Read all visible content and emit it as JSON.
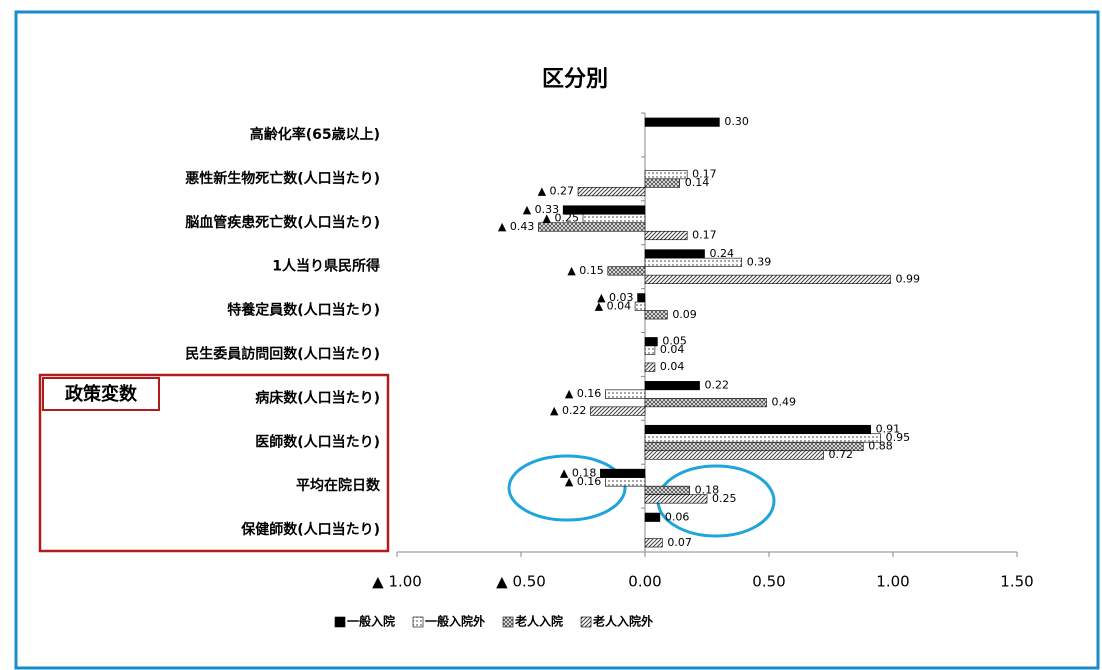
{
  "chart_data": {
    "type": "bar",
    "orientation": "horizontal",
    "title": "区分別",
    "categories": [
      "高齢化率(65歳以上)",
      "悪性新生物死亡数(人口当たり)",
      "脳血管疾患死亡数(人口当たり)",
      "1人当り県民所得",
      "特養定員数(人口当たり)",
      "民生委員訪問回数(人口当たり)",
      "病床数(人口当たり)",
      "医師数(人口当たり)",
      "平均在院日数",
      "保健師数(人口当たり)"
    ],
    "series": [
      {
        "name": "一般入院",
        "color": "#000000",
        "values": [
          0.3,
          null,
          -0.33,
          0.24,
          -0.03,
          0.05,
          0.22,
          0.91,
          -0.18,
          0.06
        ],
        "value_labels": [
          "0.30",
          null,
          "▲ 0.33",
          "0.24",
          "▲ 0.03",
          "0.05",
          "0.22",
          "0.91",
          "▲ 0.18",
          "0.06"
        ]
      },
      {
        "name": "一般入院外",
        "color": "#a6a6a6",
        "values": [
          null,
          0.17,
          -0.25,
          0.39,
          -0.04,
          0.04,
          -0.16,
          0.95,
          -0.16,
          null
        ],
        "value_labels": [
          null,
          "0.17",
          "▲ 0.25",
          "0.39",
          "▲ 0.04",
          "0.04",
          "▲ 0.16",
          "0.95",
          "▲ 0.16",
          null
        ]
      },
      {
        "name": "老人入院",
        "color": "#595959",
        "values": [
          null,
          0.14,
          -0.43,
          -0.15,
          0.09,
          null,
          0.49,
          0.88,
          0.18,
          null
        ],
        "value_labels": [
          null,
          "0.14",
          "▲ 0.43",
          "▲ 0.15",
          "0.09",
          null,
          "0.49",
          "0.88",
          "0.18",
          null
        ]
      },
      {
        "name": "老人入院外",
        "color": "#404040",
        "values": [
          null,
          -0.27,
          0.17,
          0.99,
          null,
          0.04,
          -0.22,
          0.72,
          0.25,
          0.07
        ],
        "value_labels": [
          null,
          "▲ 0.27",
          "0.17",
          "0.99",
          null,
          "0.04",
          "▲ 0.22",
          "0.72",
          "0.25",
          "0.07"
        ]
      }
    ],
    "xlim": [
      -1,
      1.5
    ],
    "xticks": [
      {
        "value": -1,
        "label": "▲ 1.00"
      },
      {
        "value": -0.5,
        "label": "▲ 0.50"
      },
      {
        "value": 0,
        "label": "0.00"
      },
      {
        "value": 0.5,
        "label": "0.50"
      },
      {
        "value": 1,
        "label": "1.00"
      },
      {
        "value": 1.5,
        "label": "1.50"
      }
    ],
    "annotation": "政策変数",
    "legend": "bottom"
  }
}
